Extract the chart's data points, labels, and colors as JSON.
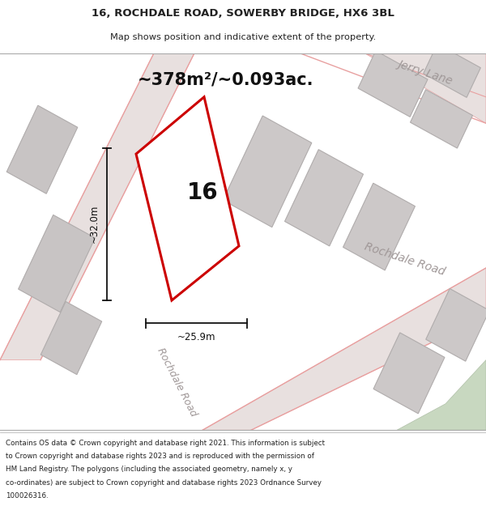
{
  "title_line1": "16, ROCHDALE ROAD, SOWERBY BRIDGE, HX6 3BL",
  "title_line2": "Map shows position and indicative extent of the property.",
  "area_text": "~378m²/~0.093ac.",
  "dim_height": "~32.0m",
  "dim_width": "~25.9m",
  "property_number": "16",
  "footer_lines": [
    "Contains OS data © Crown copyright and database right 2021. This information is subject",
    "to Crown copyright and database rights 2023 and is reproduced with the permission of",
    "HM Land Registry. The polygons (including the associated geometry, namely x, y",
    "co-ordinates) are subject to Crown copyright and database rights 2023 Ordnance Survey",
    "100026316."
  ],
  "bg_color": "#f2f0f0",
  "red_color": "#cc0000",
  "pink_line": "#e8a0a0",
  "road_fill": "#e8e0df",
  "building_fill": "#c8c4c4",
  "green_fill": "#c8d8c0",
  "road_label_color": "#a09898",
  "title_color": "#222222",
  "footer_color": "#222222",
  "annotation_color": "#111111"
}
